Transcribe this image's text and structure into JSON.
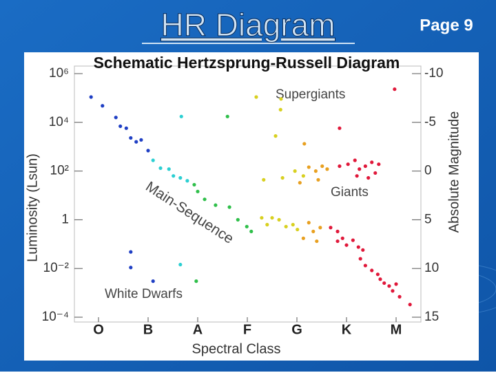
{
  "header": {
    "title": "HR Diagram",
    "page": "Page 9"
  },
  "chart_data": {
    "type": "scatter",
    "title": "Schematic Hertzsprung-Russell Diagram",
    "x_label": "Spectral Class",
    "y_label": "Luminosity (Lsun)",
    "y2_label": "Absolute Magnitude",
    "annotations": [
      "Supergiants",
      "Giants",
      "Main-Sequence",
      "White Dwarfs"
    ],
    "xlim": [
      -0.5,
      6.5
    ],
    "xticks": [
      {
        "value": 0,
        "label": "O"
      },
      {
        "value": 1,
        "label": "B"
      },
      {
        "value": 2,
        "label": "A"
      },
      {
        "value": 3,
        "label": "F"
      },
      {
        "value": 4,
        "label": "G"
      },
      {
        "value": 5,
        "label": "K"
      },
      {
        "value": 6,
        "label": "M"
      }
    ],
    "y_scale": "log",
    "ylim": [
      0.0001,
      1000000
    ],
    "yticks": [
      {
        "value": 1000000,
        "label": "10⁶"
      },
      {
        "value": 10000,
        "label": "10⁴"
      },
      {
        "value": 100,
        "label": "10²"
      },
      1,
      {
        "value": 0.01,
        "label": "10⁻²"
      },
      {
        "value": 0.0001,
        "label": "10⁻⁴"
      }
    ],
    "y2lim": [
      15,
      -10
    ],
    "y2ticks": [
      -10,
      -5,
      0,
      5,
      10,
      15
    ],
    "series": [
      {
        "color": "#1f3fc4",
        "axis": "y2",
        "x": [
          -0.15,
          0.08,
          0.35,
          0.44,
          0.56,
          0.65,
          0.76,
          0.86,
          1.0,
          0.65,
          0.65,
          1.1
        ],
        "values": [
          -7.6,
          -6.7,
          -5.5,
          -4.6,
          -4.4,
          -3.4,
          -3.0,
          -3.2,
          -2.1,
          8.3,
          9.9,
          11.3
        ]
      },
      {
        "color": "#2ccfd2",
        "axis": "y2",
        "x": [
          1.1,
          1.25,
          1.42,
          1.51,
          1.65,
          1.79,
          1.67,
          1.65
        ],
        "values": [
          -1.1,
          -0.3,
          -0.2,
          0.5,
          0.7,
          1.0,
          -5.6,
          9.6
        ]
      },
      {
        "color": "#2fbf4a",
        "axis": "y2",
        "x": [
          1.93,
          2.0,
          2.14,
          2.36,
          2.6,
          2.64,
          2.81,
          2.99,
          3.08,
          1.97
        ],
        "values": [
          1.4,
          2.1,
          2.9,
          3.5,
          -5.6,
          3.7,
          5.0,
          5.7,
          6.2,
          11.3
        ]
      },
      {
        "color": "#d8d020",
        "axis": "y2",
        "x": [
          3.18,
          3.68,
          3.67,
          3.57,
          3.33,
          3.71,
          3.96,
          4.13,
          3.29,
          3.4,
          3.5,
          3.64,
          3.78,
          3.92,
          4.01
        ],
        "values": [
          -7.6,
          -7.4,
          -6.3,
          -3.6,
          0.9,
          0.7,
          0.0,
          0.5,
          4.8,
          5.5,
          4.8,
          5.0,
          5.7,
          5.5,
          6.0
        ]
      },
      {
        "color": "#e8a020",
        "axis": "y2",
        "x": [
          4.15,
          4.06,
          4.24,
          4.38,
          4.51,
          4.61,
          4.43,
          4.24,
          4.33,
          4.13,
          4.4,
          4.47
        ],
        "values": [
          -2.8,
          1.2,
          -0.4,
          0.0,
          -0.5,
          -0.2,
          0.9,
          5.3,
          6.2,
          6.9,
          7.2,
          5.8
        ]
      },
      {
        "color": "#e0183a",
        "axis": "y2",
        "x": [
          5.97,
          4.86,
          4.86,
          5.03,
          5.17,
          5.26,
          5.38,
          5.51,
          5.65,
          5.21,
          5.44,
          5.58,
          4.68,
          4.82,
          4.92,
          5.0,
          5.13,
          5.24,
          5.33,
          5.28,
          5.38,
          5.51,
          5.63,
          5.68,
          5.76,
          5.86,
          5.93,
          6.0,
          6.07,
          6.28,
          4.82
        ],
        "values": [
          -8.4,
          -4.4,
          -0.5,
          -0.7,
          -1.1,
          -0.2,
          -0.5,
          -0.9,
          -0.7,
          0.5,
          0.7,
          0.2,
          5.8,
          6.2,
          6.9,
          7.6,
          7.1,
          7.8,
          8.1,
          9.0,
          9.7,
          10.2,
          10.6,
          11.1,
          11.5,
          11.8,
          12.3,
          11.6,
          12.9,
          13.7,
          7.2
        ]
      }
    ]
  }
}
